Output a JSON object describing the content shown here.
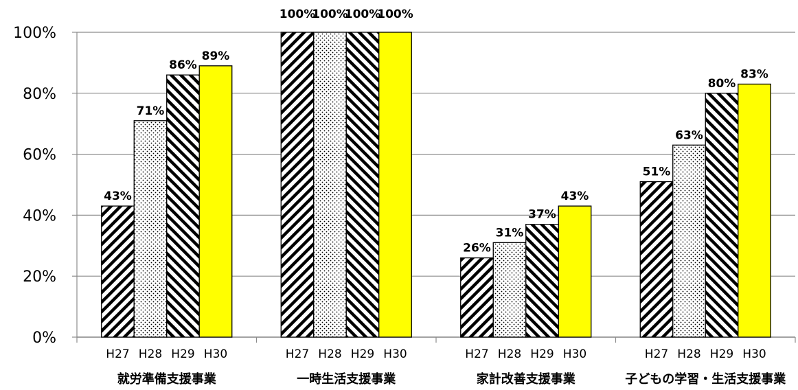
{
  "chart_data": {
    "type": "bar",
    "categories": [
      "就労準備支援事業",
      "一時生活支援事業",
      "家計改善支援事業",
      "子どもの学習・生活支援事業"
    ],
    "series": [
      {
        "year": "H27",
        "pattern": "diagonal-up",
        "values": [
          43,
          100,
          26,
          51
        ],
        "labels": [
          "43%",
          "100%",
          "26%",
          "51%"
        ]
      },
      {
        "year": "H28",
        "pattern": "dots",
        "values": [
          71,
          100,
          31,
          63
        ],
        "labels": [
          "71%",
          "100%",
          "31%",
          "63%"
        ]
      },
      {
        "year": "H29",
        "pattern": "diagonal-down",
        "values": [
          86,
          100,
          37,
          80
        ],
        "labels": [
          "86%",
          "100%",
          "37%",
          "80%"
        ]
      },
      {
        "year": "H30",
        "pattern": "solid",
        "color": "#ffff00",
        "values": [
          89,
          100,
          43,
          83
        ],
        "labels": [
          "89%",
          "100%",
          "43%",
          "83%"
        ]
      }
    ],
    "yticks": [
      "0%",
      "20%",
      "40%",
      "60%",
      "80%",
      "100%"
    ],
    "ylim": [
      0,
      100
    ],
    "grid": true,
    "legend": "none"
  }
}
